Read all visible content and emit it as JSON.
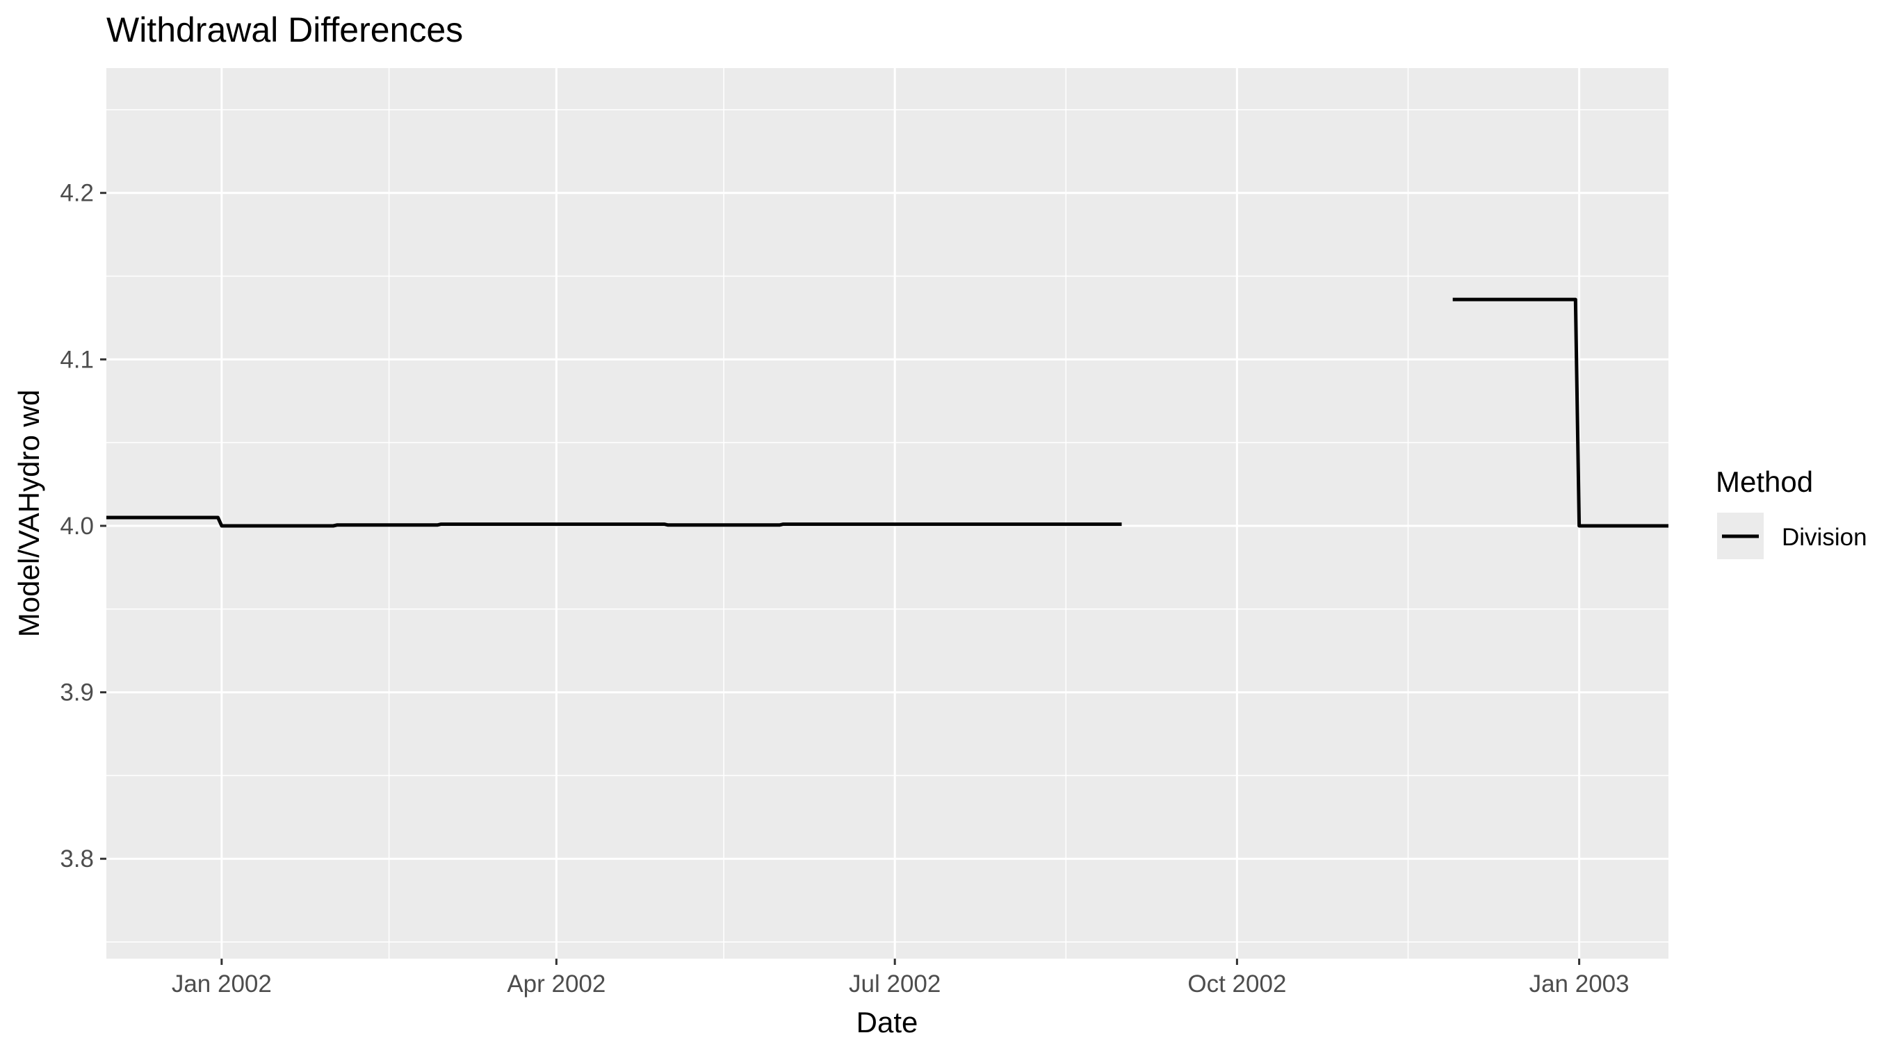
{
  "chart_data": {
    "type": "line",
    "title": "Withdrawal Differences",
    "xlabel": "Date",
    "ylabel": "Model/VAHydro wd",
    "xlim": [
      "2001-12-01",
      "2003-01-25"
    ],
    "ylim": [
      3.74,
      4.275
    ],
    "x_ticks": [
      {
        "date": "2002-01-01",
        "label": "Jan 2002"
      },
      {
        "date": "2002-04-01",
        "label": "Apr 2002"
      },
      {
        "date": "2002-07-01",
        "label": "Jul 2002"
      },
      {
        "date": "2002-10-01",
        "label": "Oct 2002"
      },
      {
        "date": "2003-01-01",
        "label": "Jan 2003"
      }
    ],
    "x_minor_ticks": [
      "2002-02-15",
      "2002-05-16",
      "2002-08-16",
      "2002-11-16"
    ],
    "y_ticks": [
      3.8,
      3.9,
      4.0,
      4.1,
      4.2
    ],
    "y_minor_ticks": [
      3.75,
      3.85,
      3.95,
      4.05,
      4.15,
      4.25
    ],
    "grid": true,
    "panel_background": "#ebebeb",
    "grid_color": "#ffffff",
    "legend": {
      "title": "Method",
      "position": "right",
      "entries": [
        {
          "label": "Division",
          "color": "#000000"
        }
      ]
    },
    "series": [
      {
        "name": "Division",
        "color": "#000000",
        "segments": [
          [
            {
              "x": "2001-12-01",
              "y": 4.005
            },
            {
              "x": "2001-12-31",
              "y": 4.005
            },
            {
              "x": "2002-01-01",
              "y": 4.0
            },
            {
              "x": "2002-01-31",
              "y": 4.0
            },
            {
              "x": "2002-02-01",
              "y": 4.0005
            },
            {
              "x": "2002-02-28",
              "y": 4.0005
            },
            {
              "x": "2002-03-01",
              "y": 4.001
            },
            {
              "x": "2002-04-30",
              "y": 4.001
            },
            {
              "x": "2002-05-01",
              "y": 4.0005
            },
            {
              "x": "2002-05-31",
              "y": 4.0005
            },
            {
              "x": "2002-06-01",
              "y": 4.001
            },
            {
              "x": "2002-08-31",
              "y": 4.001
            }
          ],
          [
            {
              "x": "2002-11-28",
              "y": 4.136
            },
            {
              "x": "2002-12-31",
              "y": 4.136
            },
            {
              "x": "2003-01-01",
              "y": 4.0
            },
            {
              "x": "2003-01-25",
              "y": 4.0
            }
          ]
        ]
      }
    ]
  }
}
